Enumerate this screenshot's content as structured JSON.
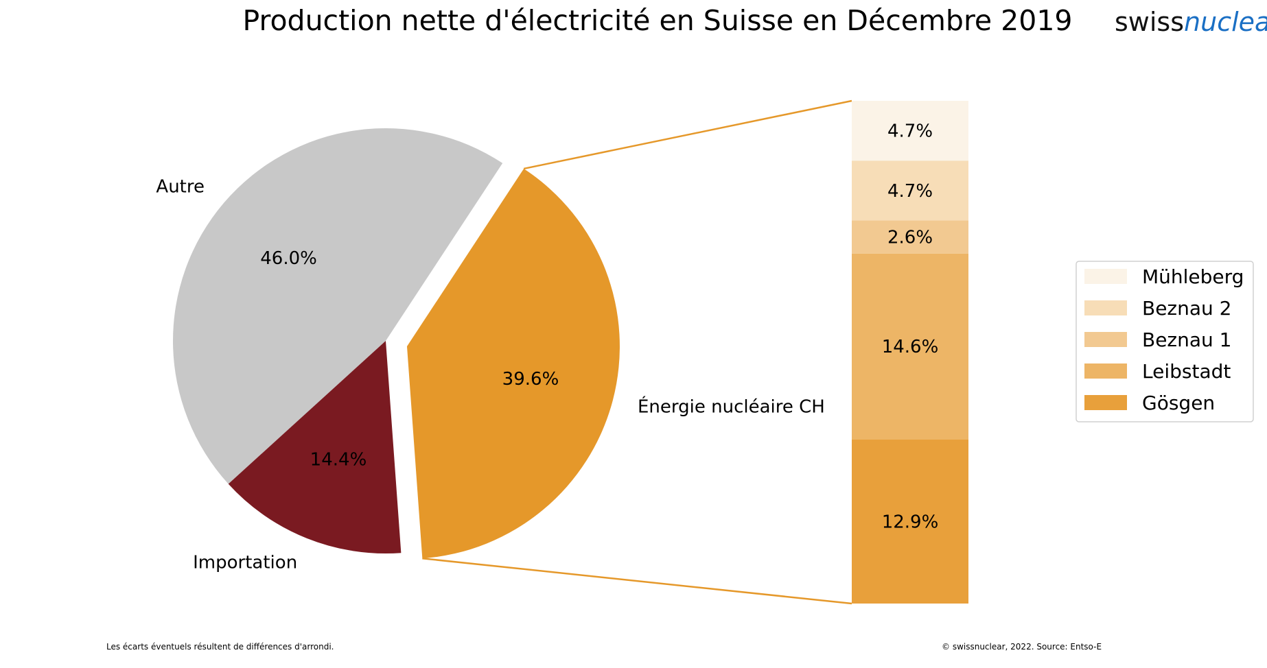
{
  "colors": {
    "autre": "#c8c8c8",
    "importation": "#7a1a21",
    "nuclear": "#e5982a",
    "connector": "#e5982a",
    "muhleberg": "#fbf3e7",
    "beznau2": "#f7ddb7",
    "beznau1": "#f2c991",
    "leibstadt": "#edb566",
    "gosgen": "#e8a03b",
    "logo_blue": "#1a6fc4"
  },
  "logo": {
    "swiss": "swiss",
    "nuclear": "nuclear"
  },
  "footer": {
    "note": "Les écarts éventuels résultent de différences d'arrondi.",
    "source": "© swissnuclear, 2022. Source: Entso-E"
  },
  "chart_data": [
    {
      "type": "pie",
      "title": "Production nette d'électricité en Suisse en Décembre 2019",
      "labels": [
        "Énergie nucléaire CH",
        "Autre",
        "Importation"
      ],
      "values": [
        39.6,
        46.0,
        14.4
      ],
      "value_labels": [
        "39.6%",
        "46.0%",
        "14.4%"
      ],
      "exploded": [
        "Énergie nucléaire CH"
      ]
    },
    {
      "type": "bar",
      "stacked": true,
      "categories": [
        "Gösgen",
        "Leibstadt",
        "Beznau 1",
        "Beznau 2",
        "Mühleberg"
      ],
      "values": [
        12.9,
        14.6,
        2.6,
        4.7,
        4.7
      ],
      "value_labels": [
        "12.9%",
        "14.6%",
        "2.6%",
        "4.7%",
        "4.7%"
      ],
      "legend": {
        "entries": [
          "Mühleberg",
          "Beznau 2",
          "Beznau 1",
          "Leibstadt",
          "Gösgen"
        ],
        "position": "right"
      }
    }
  ]
}
